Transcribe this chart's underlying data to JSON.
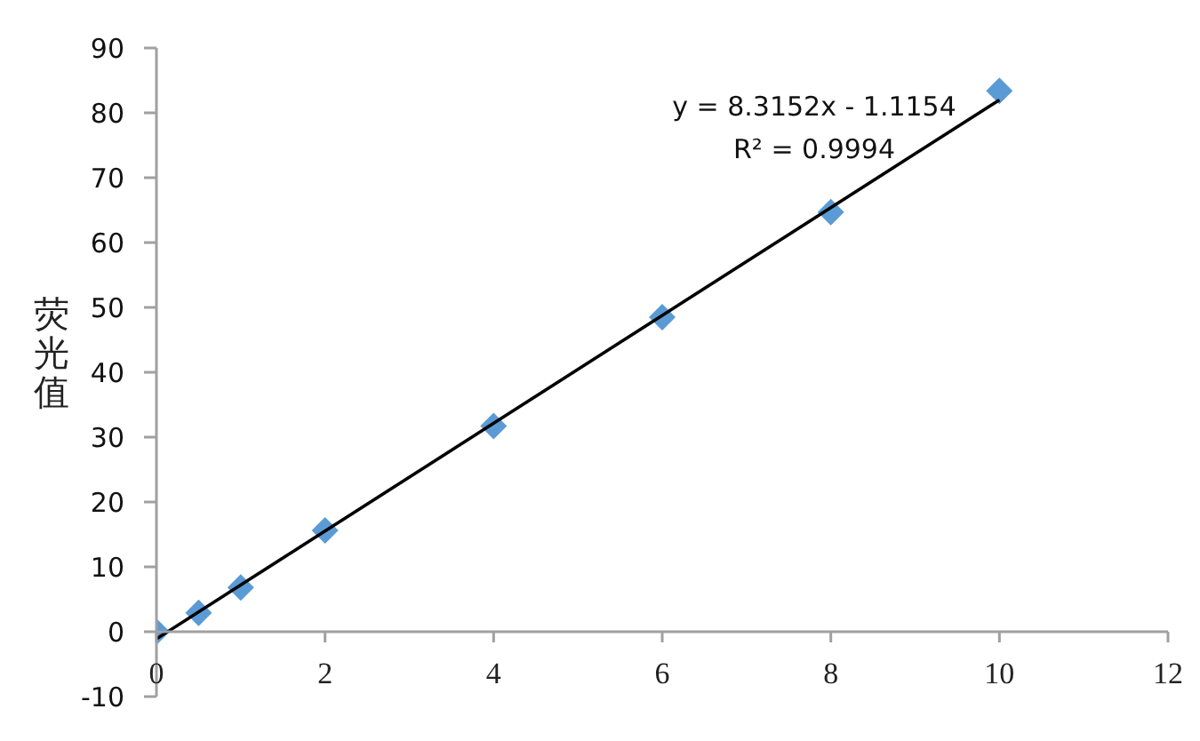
{
  "chart_data": {
    "type": "scatter",
    "ylabel": "荧光值",
    "annotations": [
      "y = 8.3152x - 1.1154",
      "R² = 0.9994"
    ],
    "xlim": [
      0,
      12
    ],
    "xticks": [
      0,
      2,
      4,
      6,
      8,
      10,
      12
    ],
    "ylim": [
      -10,
      90
    ],
    "yticks": [
      -10,
      0,
      10,
      20,
      30,
      40,
      50,
      60,
      70,
      80,
      90
    ],
    "grid": false,
    "legend": false,
    "marker": "diamond",
    "series": [
      {
        "color": "#5b9bd5",
        "x": [
          0,
          0.5,
          1,
          2,
          4,
          6,
          8,
          10
        ],
        "values": [
          0,
          2.9,
          6.8,
          15.6,
          31.7,
          48.5,
          64.7,
          83.4
        ]
      },
      {
        "type": "line",
        "color": "#000000",
        "marker": "none",
        "line_style": "solid",
        "x": [
          0,
          10
        ],
        "values": [
          -1.1,
          82.0
        ]
      }
    ]
  }
}
